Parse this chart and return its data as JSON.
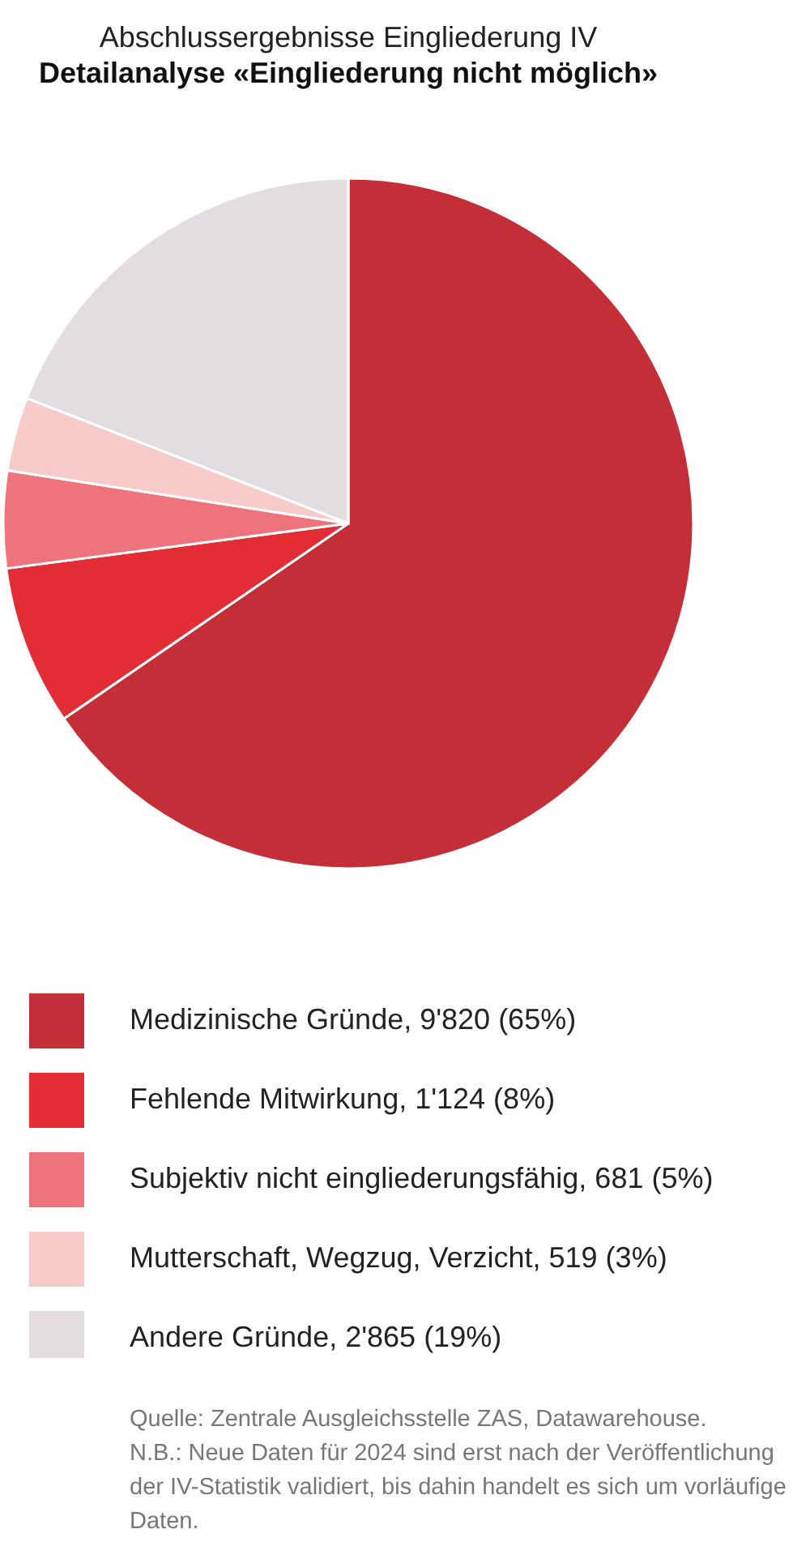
{
  "chart_data": {
    "type": "pie",
    "title": "Abschlussergebnisse Eingliederung IV",
    "subtitle": "Detailanalyse «Eingliederung nicht möglich»",
    "categories": [
      "Medizinische Gründe",
      "Fehlende Mitwirkung",
      "Subjektiv nicht eingliederungsfähig",
      "Mutterschaft, Wegzug, Verzicht",
      "Andere Gründe"
    ],
    "values": [
      9820,
      1124,
      681,
      519,
      2865
    ],
    "colors": [
      "#c42e37",
      "#e32d35",
      "#ee737d",
      "#f8cbcb",
      "#e3dce0"
    ],
    "value_labels": [
      "9'820 (65%)",
      "1'124 (8%)",
      "681 (5%)",
      "519 (3%)",
      "2'865 (19%)"
    ],
    "legend": "bottom",
    "annotations": [
      "Quelle: Zentrale Ausgleichsstelle ZAS, Datawarehouse.",
      "N.B.: Neue Daten für 2024 sind erst nach der Veröffentlichung der IV-Statistik validiert, bis dahin handelt es sich um vorläufige Daten."
    ]
  }
}
